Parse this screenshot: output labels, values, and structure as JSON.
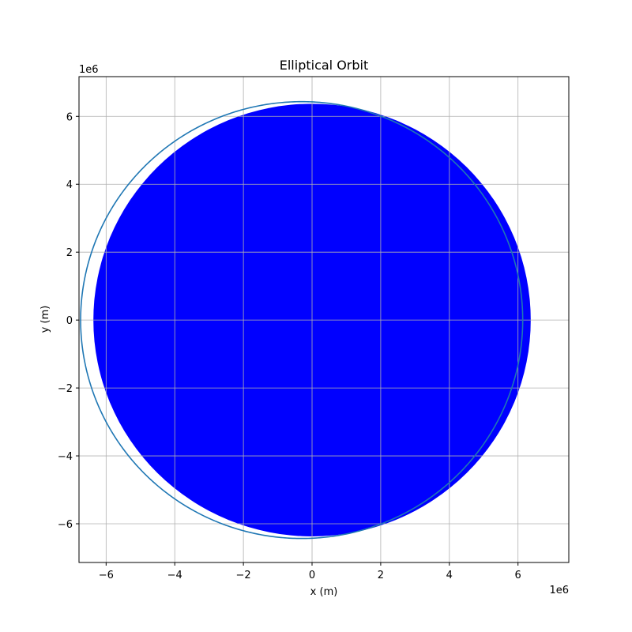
{
  "chart_data": {
    "type": "line",
    "title": "Elliptical Orbit",
    "xlabel": "x (m)",
    "ylabel": "y (m)",
    "x_offset_label": "1e6",
    "y_offset_label": "1e6",
    "axis_scale": 1000000,
    "xlim": [
      -6790000,
      7480000
    ],
    "ylim": [
      -7140000,
      7170000
    ],
    "xticks": [
      -6000000,
      -4000000,
      -2000000,
      0,
      2000000,
      4000000,
      6000000
    ],
    "yticks": [
      -6000000,
      -4000000,
      -2000000,
      0,
      2000000,
      4000000,
      6000000
    ],
    "xtick_labels": [
      "−6",
      "−4",
      "−2",
      "0",
      "2",
      "4",
      "6"
    ],
    "ytick_labels": [
      "−6",
      "−4",
      "−2",
      "0",
      "2",
      "4",
      "6"
    ],
    "grid": true,
    "earth_disk": {
      "center": [
        0,
        0
      ],
      "radius": 6371000,
      "color": "#0000ff"
    },
    "orbit": {
      "semi_major_axis": 6440000,
      "eccentricity": 0.047,
      "focus": [
        0,
        0
      ],
      "color": "#1f77b4"
    }
  }
}
